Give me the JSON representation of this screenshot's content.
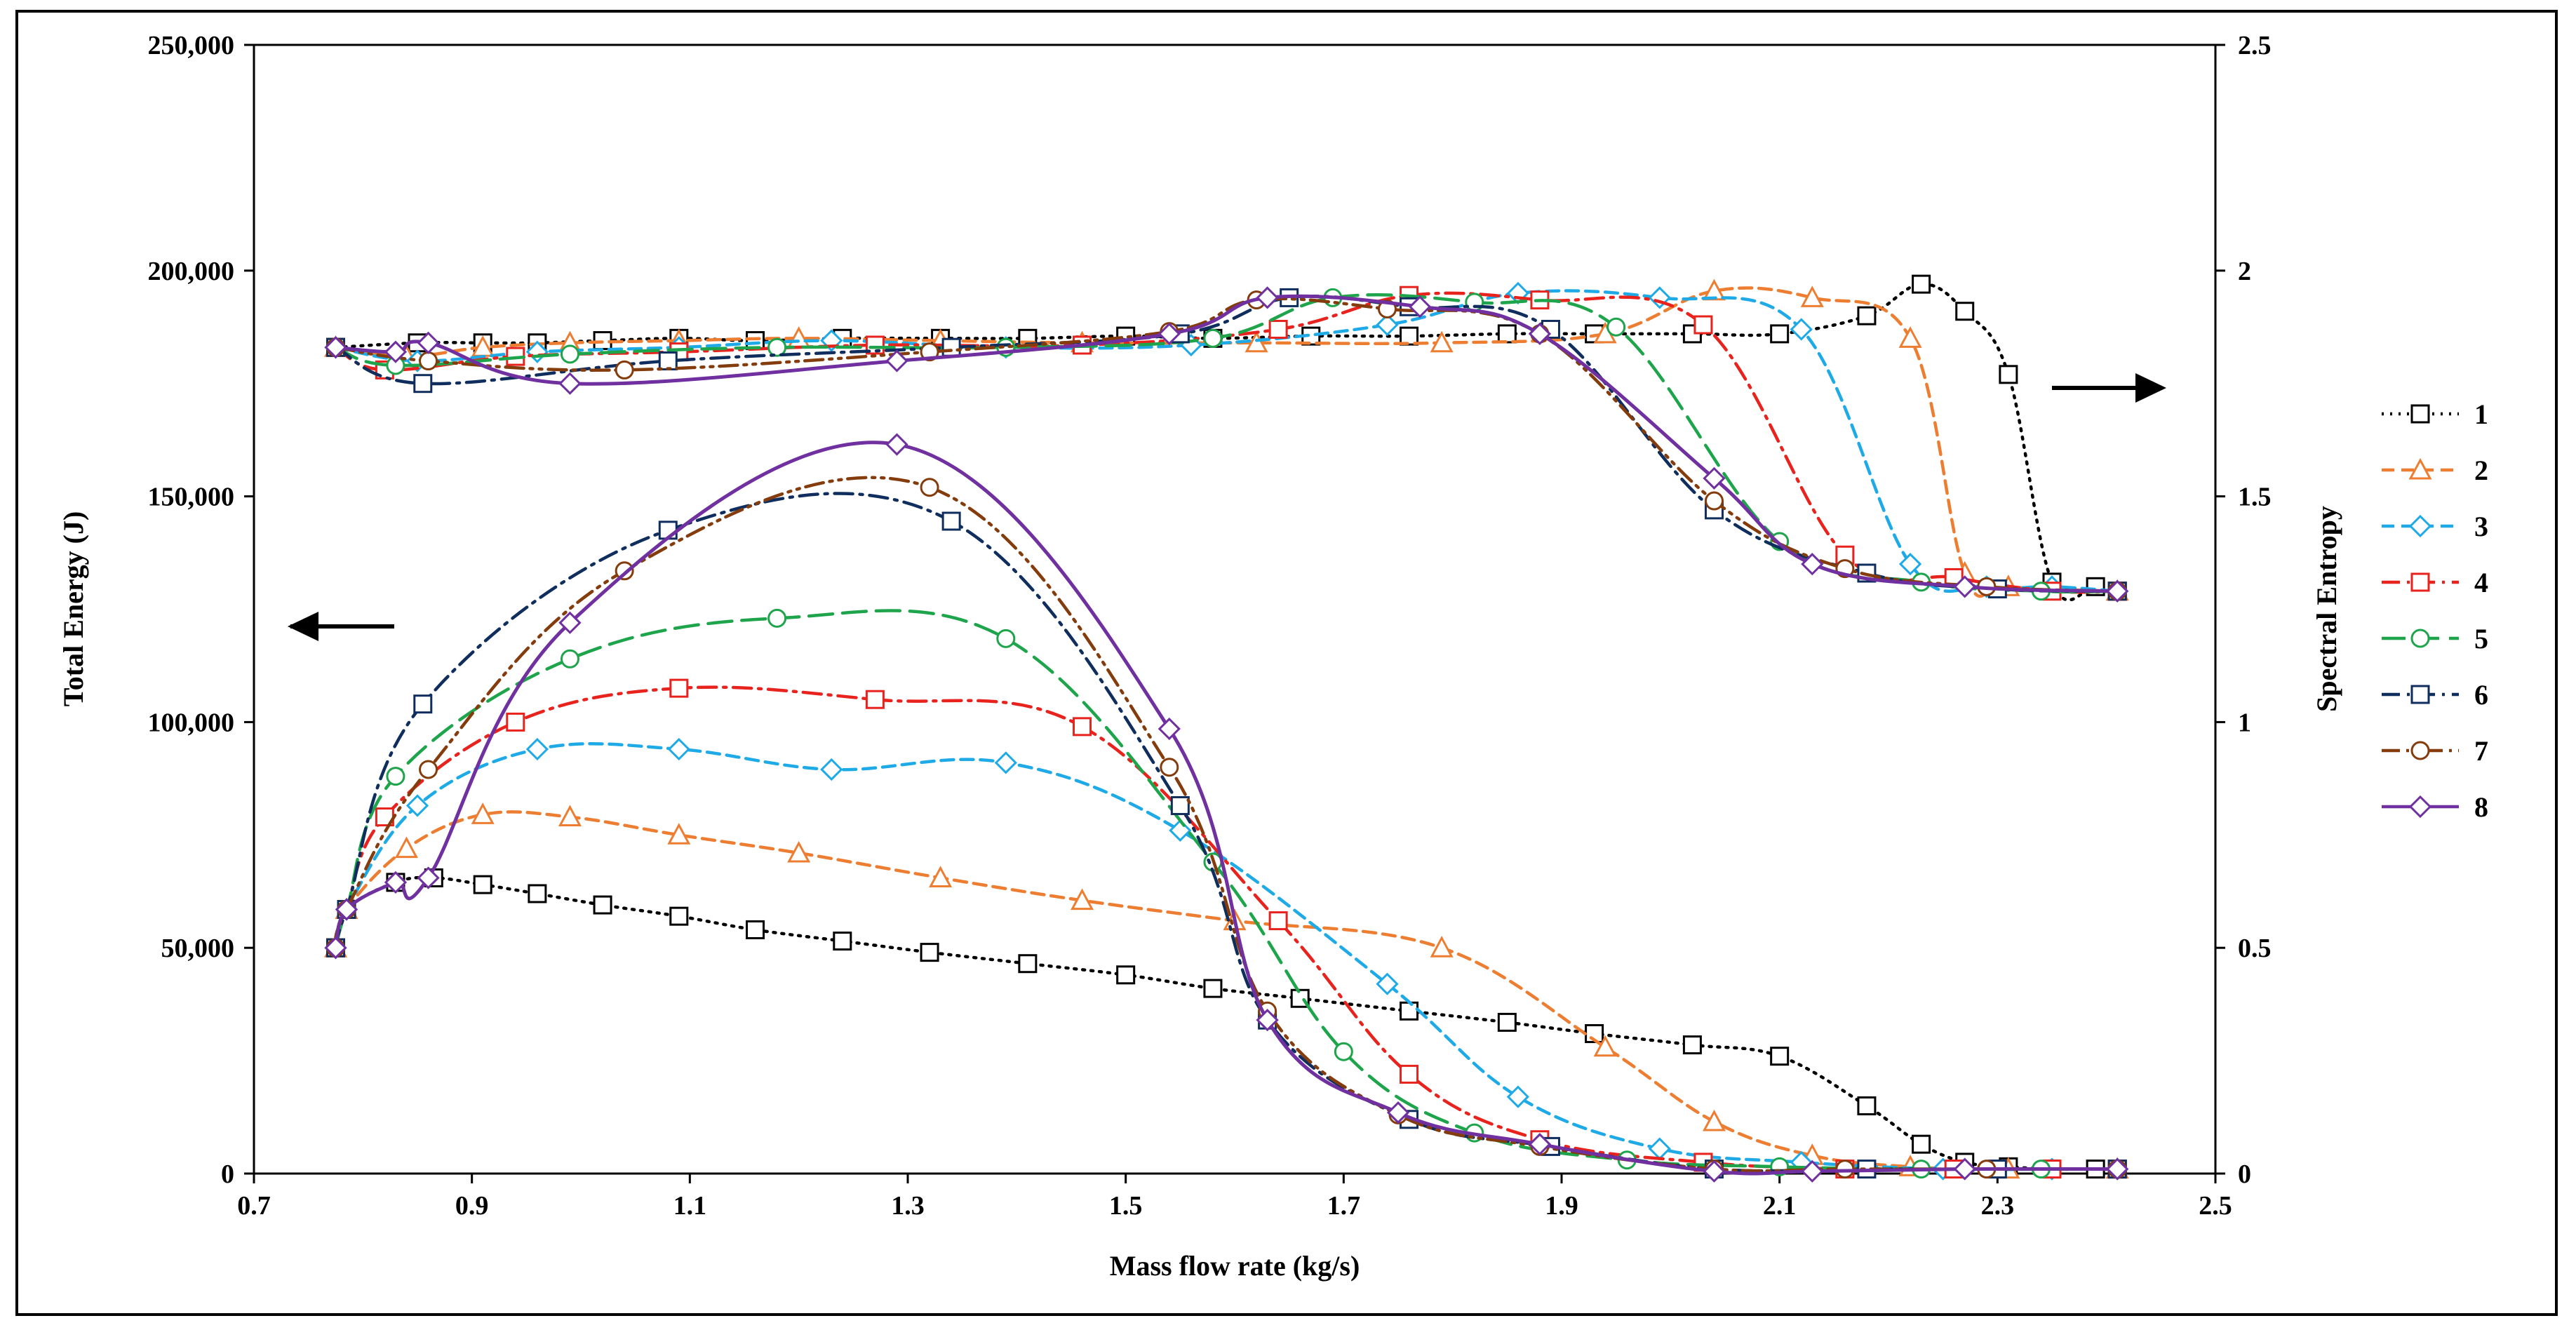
{
  "chart_data": {
    "type": "line",
    "title": "",
    "xlabel": "Mass flow rate (kg/s)",
    "ylabel_left": "Total Energy (J)",
    "ylabel_right": "Spectral Entropy",
    "xlim": [
      0.7,
      2.5
    ],
    "ylim_left": [
      0,
      250000
    ],
    "ylim_right": [
      0,
      2.5
    ],
    "x_ticks": [
      "0.7",
      "0.9",
      "1.1",
      "1.3",
      "1.5",
      "1.7",
      "1.9",
      "2.1",
      "2.3",
      "2.5"
    ],
    "y_left_ticks": [
      "0",
      "50,000",
      "100,000",
      "150,000",
      "200,000",
      "250,000"
    ],
    "y_right_ticks": [
      "0",
      "0.5",
      "1",
      "1.5",
      "2",
      "2.5"
    ],
    "legend_position": "right",
    "grid": false,
    "arrow_left_meaning": "Total Energy (left axis)",
    "arrow_right_meaning": "Spectral Entropy (right axis)",
    "series": [
      {
        "name": "1",
        "color": "#000000",
        "dash": "dot",
        "marker": "square",
        "energy": [
          [
            0.775,
            50000
          ],
          [
            0.785,
            58500
          ],
          [
            0.83,
            64500
          ],
          [
            0.865,
            65500
          ],
          [
            0.91,
            64000
          ],
          [
            0.96,
            62000
          ],
          [
            1.02,
            59500
          ],
          [
            1.09,
            57000
          ],
          [
            1.16,
            54000
          ],
          [
            1.24,
            51500
          ],
          [
            1.32,
            49000
          ],
          [
            1.41,
            46500
          ],
          [
            1.5,
            44000
          ],
          [
            1.58,
            41000
          ],
          [
            1.66,
            38800
          ],
          [
            1.76,
            36000
          ],
          [
            1.85,
            33500
          ],
          [
            1.93,
            31000
          ],
          [
            2.02,
            28500
          ],
          [
            2.1,
            26000
          ],
          [
            2.18,
            15000
          ],
          [
            2.23,
            6500
          ],
          [
            2.27,
            2500
          ],
          [
            2.31,
            1500
          ],
          [
            2.35,
            1000
          ],
          [
            2.39,
            1000
          ],
          [
            2.41,
            1000
          ]
        ],
        "entropy": [
          [
            0.775,
            1.83
          ],
          [
            0.85,
            1.84
          ],
          [
            0.91,
            1.84
          ],
          [
            0.96,
            1.84
          ],
          [
            1.02,
            1.845
          ],
          [
            1.09,
            1.85
          ],
          [
            1.16,
            1.845
          ],
          [
            1.24,
            1.85
          ],
          [
            1.33,
            1.85
          ],
          [
            1.41,
            1.85
          ],
          [
            1.5,
            1.855
          ],
          [
            1.58,
            1.85
          ],
          [
            1.67,
            1.855
          ],
          [
            1.76,
            1.855
          ],
          [
            1.85,
            1.86
          ],
          [
            1.93,
            1.86
          ],
          [
            2.02,
            1.86
          ],
          [
            2.1,
            1.86
          ],
          [
            2.18,
            1.9
          ],
          [
            2.23,
            1.97
          ],
          [
            2.27,
            1.91
          ],
          [
            2.31,
            1.77
          ],
          [
            2.35,
            1.31
          ],
          [
            2.39,
            1.3
          ],
          [
            2.41,
            1.29
          ]
        ]
      },
      {
        "name": "2",
        "color": "#ED7D31",
        "dash": "dash",
        "marker": "triangle",
        "energy": [
          [
            0.775,
            50000
          ],
          [
            0.785,
            58500
          ],
          [
            0.84,
            72000
          ],
          [
            0.91,
            79500
          ],
          [
            0.99,
            79000
          ],
          [
            1.09,
            75000
          ],
          [
            1.2,
            71000
          ],
          [
            1.33,
            65500
          ],
          [
            1.46,
            60500
          ],
          [
            1.6,
            56000
          ],
          [
            1.79,
            50000
          ],
          [
            1.94,
            28000
          ],
          [
            2.04,
            11500
          ],
          [
            2.13,
            4000
          ],
          [
            2.22,
            1500
          ],
          [
            2.31,
            1000
          ],
          [
            2.41,
            1000
          ]
        ],
        "entropy": [
          [
            0.775,
            1.83
          ],
          [
            0.84,
            1.81
          ],
          [
            0.91,
            1.83
          ],
          [
            0.99,
            1.84
          ],
          [
            1.09,
            1.845
          ],
          [
            1.2,
            1.85
          ],
          [
            1.33,
            1.845
          ],
          [
            1.46,
            1.84
          ],
          [
            1.62,
            1.84
          ],
          [
            1.79,
            1.84
          ],
          [
            1.94,
            1.86
          ],
          [
            2.04,
            1.955
          ],
          [
            2.13,
            1.94
          ],
          [
            2.22,
            1.85
          ],
          [
            2.27,
            1.33
          ],
          [
            2.31,
            1.3
          ],
          [
            2.41,
            1.29
          ]
        ]
      },
      {
        "name": "3",
        "color": "#1EAAE7",
        "dash": "dash",
        "marker": "diamond",
        "energy": [
          [
            0.775,
            50000
          ],
          [
            0.785,
            58500
          ],
          [
            0.85,
            81500
          ],
          [
            0.96,
            94000
          ],
          [
            1.09,
            94000
          ],
          [
            1.23,
            89500
          ],
          [
            1.39,
            91000
          ],
          [
            1.55,
            76000
          ],
          [
            1.74,
            42000
          ],
          [
            1.86,
            17000
          ],
          [
            1.99,
            5500
          ],
          [
            2.12,
            2500
          ],
          [
            2.25,
            1000
          ],
          [
            2.35,
            1000
          ],
          [
            2.41,
            1000
          ]
        ],
        "entropy": [
          [
            0.775,
            1.83
          ],
          [
            0.85,
            1.8
          ],
          [
            0.96,
            1.82
          ],
          [
            1.09,
            1.83
          ],
          [
            1.23,
            1.845
          ],
          [
            1.39,
            1.83
          ],
          [
            1.56,
            1.835
          ],
          [
            1.74,
            1.88
          ],
          [
            1.86,
            1.95
          ],
          [
            1.99,
            1.94
          ],
          [
            2.12,
            1.87
          ],
          [
            2.22,
            1.35
          ],
          [
            2.29,
            1.3
          ],
          [
            2.35,
            1.3
          ],
          [
            2.41,
            1.29
          ]
        ]
      },
      {
        "name": "4",
        "color": "#E8221C",
        "dash": "dashdot",
        "marker": "square",
        "energy": [
          [
            0.775,
            50000
          ],
          [
            0.785,
            58500
          ],
          [
            0.82,
            79000
          ],
          [
            0.94,
            100000
          ],
          [
            1.09,
            107500
          ],
          [
            1.27,
            105000
          ],
          [
            1.46,
            99000
          ],
          [
            1.64,
            56000
          ],
          [
            1.76,
            22000
          ],
          [
            1.88,
            7500
          ],
          [
            2.03,
            2500
          ],
          [
            2.16,
            1000
          ],
          [
            2.26,
            1000
          ],
          [
            2.35,
            1000
          ],
          [
            2.41,
            1000
          ]
        ],
        "entropy": [
          [
            0.775,
            1.83
          ],
          [
            0.82,
            1.78
          ],
          [
            0.94,
            1.81
          ],
          [
            1.09,
            1.82
          ],
          [
            1.27,
            1.835
          ],
          [
            1.46,
            1.835
          ],
          [
            1.64,
            1.87
          ],
          [
            1.76,
            1.945
          ],
          [
            1.88,
            1.935
          ],
          [
            2.03,
            1.88
          ],
          [
            2.16,
            1.37
          ],
          [
            2.26,
            1.32
          ],
          [
            2.35,
            1.29
          ],
          [
            2.41,
            1.29
          ]
        ]
      },
      {
        "name": "5",
        "color": "#1EA54C",
        "dash": "longdash",
        "marker": "circle",
        "energy": [
          [
            0.775,
            50000
          ],
          [
            0.785,
            58500
          ],
          [
            0.83,
            88000
          ],
          [
            0.99,
            114000
          ],
          [
            1.18,
            123000
          ],
          [
            1.39,
            118500
          ],
          [
            1.58,
            69000
          ],
          [
            1.7,
            27000
          ],
          [
            1.82,
            9000
          ],
          [
            1.96,
            3000
          ],
          [
            2.1,
            1500
          ],
          [
            2.23,
            1000
          ],
          [
            2.34,
            1000
          ],
          [
            2.41,
            1000
          ]
        ],
        "entropy": [
          [
            0.775,
            1.83
          ],
          [
            0.83,
            1.79
          ],
          [
            0.99,
            1.815
          ],
          [
            1.18,
            1.83
          ],
          [
            1.39,
            1.83
          ],
          [
            1.58,
            1.85
          ],
          [
            1.69,
            1.94
          ],
          [
            1.82,
            1.93
          ],
          [
            1.95,
            1.875
          ],
          [
            2.1,
            1.4
          ],
          [
            2.23,
            1.31
          ],
          [
            2.34,
            1.29
          ],
          [
            2.41,
            1.29
          ]
        ]
      },
      {
        "name": "6",
        "color": "#0F2E5E",
        "dash": "dashdot",
        "marker": "square",
        "energy": [
          [
            0.775,
            50000
          ],
          [
            0.785,
            58500
          ],
          [
            0.855,
            104000
          ],
          [
            1.08,
            142500
          ],
          [
            1.34,
            144500
          ],
          [
            1.55,
            81500
          ],
          [
            1.63,
            34000
          ],
          [
            1.76,
            12000
          ],
          [
            1.89,
            6000
          ],
          [
            2.04,
            1000
          ],
          [
            2.18,
            1000
          ],
          [
            2.3,
            1000
          ],
          [
            2.41,
            1000
          ]
        ],
        "entropy": [
          [
            0.775,
            1.83
          ],
          [
            0.855,
            1.75
          ],
          [
            1.08,
            1.8
          ],
          [
            1.34,
            1.83
          ],
          [
            1.55,
            1.86
          ],
          [
            1.65,
            1.94
          ],
          [
            1.76,
            1.92
          ],
          [
            1.89,
            1.87
          ],
          [
            2.04,
            1.47
          ],
          [
            2.18,
            1.33
          ],
          [
            2.3,
            1.295
          ],
          [
            2.41,
            1.29
          ]
        ]
      },
      {
        "name": "7",
        "color": "#843C0C",
        "dash": "dashdotdot",
        "marker": "circle",
        "energy": [
          [
            0.775,
            50000
          ],
          [
            0.785,
            58500
          ],
          [
            0.86,
            89500
          ],
          [
            1.04,
            133500
          ],
          [
            1.32,
            152000
          ],
          [
            1.54,
            90000
          ],
          [
            1.63,
            36000
          ],
          [
            1.75,
            13000
          ],
          [
            1.88,
            6000
          ],
          [
            2.04,
            1000
          ],
          [
            2.16,
            1000
          ],
          [
            2.29,
            1000
          ],
          [
            2.41,
            1000
          ]
        ],
        "entropy": [
          [
            0.775,
            1.83
          ],
          [
            0.86,
            1.8
          ],
          [
            1.04,
            1.78
          ],
          [
            1.32,
            1.82
          ],
          [
            1.54,
            1.865
          ],
          [
            1.62,
            1.935
          ],
          [
            1.74,
            1.915
          ],
          [
            1.88,
            1.86
          ],
          [
            2.04,
            1.49
          ],
          [
            2.16,
            1.34
          ],
          [
            2.29,
            1.3
          ],
          [
            2.41,
            1.29
          ]
        ]
      },
      {
        "name": "8",
        "color": "#7030A0",
        "dash": "solid",
        "marker": "diamond",
        "energy": [
          [
            0.775,
            50000
          ],
          [
            0.785,
            58500
          ],
          [
            0.83,
            64500
          ],
          [
            0.86,
            65500
          ],
          [
            0.99,
            122000
          ],
          [
            1.29,
            161500
          ],
          [
            1.54,
            98500
          ],
          [
            1.63,
            34000
          ],
          [
            1.75,
            13500
          ],
          [
            1.88,
            6500
          ],
          [
            2.04,
            500
          ],
          [
            2.13,
            500
          ],
          [
            2.27,
            1000
          ],
          [
            2.41,
            1000
          ]
        ],
        "entropy": [
          [
            0.775,
            1.83
          ],
          [
            0.83,
            1.82
          ],
          [
            0.86,
            1.84
          ],
          [
            0.99,
            1.75
          ],
          [
            1.29,
            1.8
          ],
          [
            1.54,
            1.86
          ],
          [
            1.63,
            1.94
          ],
          [
            1.77,
            1.92
          ],
          [
            1.88,
            1.86
          ],
          [
            2.04,
            1.54
          ],
          [
            2.13,
            1.35
          ],
          [
            2.27,
            1.3
          ],
          [
            2.41,
            1.29
          ]
        ]
      }
    ]
  }
}
